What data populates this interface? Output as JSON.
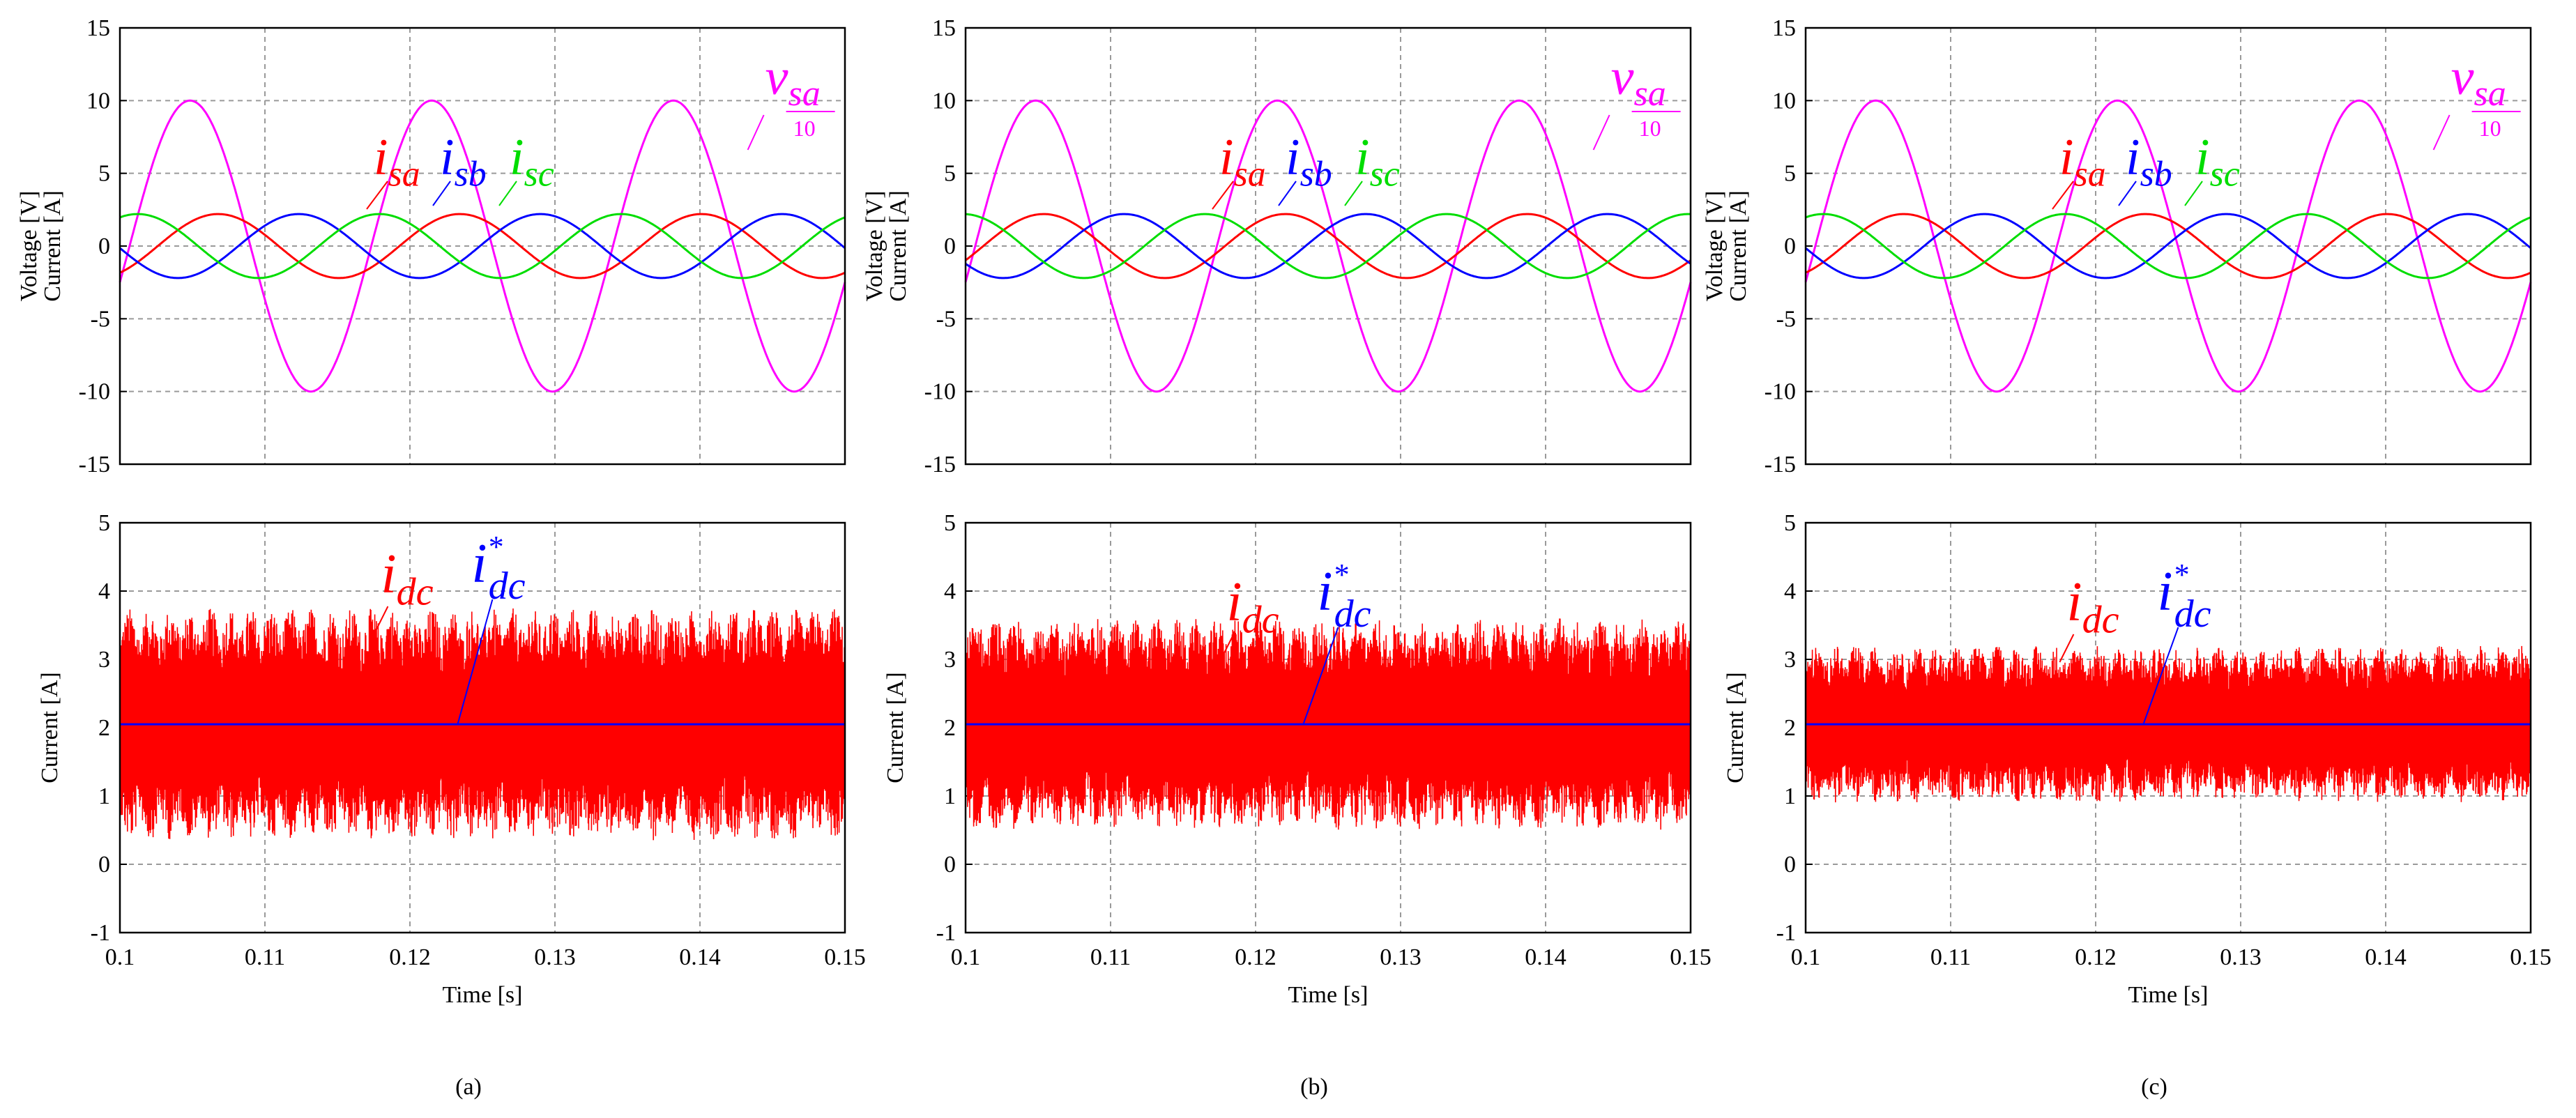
{
  "chart_data": [
    {
      "panel": "a",
      "caption": "(a)",
      "top": {
        "type": "line",
        "ylabel_lines": [
          "Voltage [V]",
          "Current [A]"
        ],
        "xlim": [
          0.1,
          0.15
        ],
        "ylim": [
          -15,
          15
        ],
        "yticks": [
          "15",
          "10",
          "5",
          "0",
          "-5",
          "-10",
          "-15"
        ],
        "grid": true,
        "series": [
          {
            "label": "v_sa/10",
            "color": "#ff00ff",
            "amplitude": 10,
            "frequency_hz": 60,
            "phase_deg": 90
          },
          {
            "label": "i_sa",
            "color": "#ff0000",
            "amplitude": 2.2,
            "frequency_hz": 60,
            "phase_deg": 48
          },
          {
            "label": "i_sb",
            "color": "#0000ff",
            "amplitude": 2.2,
            "frequency_hz": 60,
            "phase_deg": -72
          },
          {
            "label": "i_sc",
            "color": "#00dd00",
            "amplitude": 2.2,
            "frequency_hz": 60,
            "phase_deg": 168
          }
        ]
      },
      "bottom": {
        "type": "line",
        "ylabel": "Current [A]",
        "xlabel": "Time [s]",
        "xlim": [
          0.1,
          0.15
        ],
        "ylim": [
          -1,
          5
        ],
        "xticks": [
          "0.1",
          "0.11",
          "0.12",
          "0.13",
          "0.14",
          "0.15"
        ],
        "yticks": [
          "5",
          "4",
          "3",
          "2",
          "1",
          "0",
          "-1"
        ],
        "grid": true,
        "series": [
          {
            "label": "i_dc",
            "color": "#ff0000",
            "mean": 2.05,
            "ripple_min": 0.3,
            "ripple_max": 3.7
          },
          {
            "label": "i*_dc",
            "color": "#0000ff",
            "value": 2.05
          }
        ]
      }
    },
    {
      "panel": "b",
      "caption": "(b)",
      "top": {
        "type": "line",
        "ylabel_lines": [
          "Voltage [V]",
          "Current [A]"
        ],
        "xlim": [
          0.1,
          0.15
        ],
        "ylim": [
          -15,
          15
        ],
        "yticks": [
          "15",
          "10",
          "5",
          "0",
          "-5",
          "-10",
          "-15"
        ],
        "grid": true,
        "series": [
          {
            "label": "v_sa/10",
            "color": "#ff00ff",
            "amplitude": 10,
            "frequency_hz": 60,
            "phase_deg": 90
          },
          {
            "label": "i_sa",
            "color": "#ff0000",
            "amplitude": 2.2,
            "frequency_hz": 60,
            "phase_deg": 78
          },
          {
            "label": "i_sb",
            "color": "#0000ff",
            "amplitude": 2.2,
            "frequency_hz": 60,
            "phase_deg": -42
          },
          {
            "label": "i_sc",
            "color": "#00dd00",
            "amplitude": 2.2,
            "frequency_hz": 60,
            "phase_deg": 198
          }
        ]
      },
      "bottom": {
        "type": "line",
        "ylabel": "Current [A]",
        "xlabel": "Time [s]",
        "xlim": [
          0.1,
          0.15
        ],
        "ylim": [
          -1,
          5
        ],
        "xticks": [
          "0.1",
          "0.11",
          "0.12",
          "0.13",
          "0.14",
          "0.15"
        ],
        "yticks": [
          "5",
          "4",
          "3",
          "2",
          "1",
          "0",
          "-1"
        ],
        "grid": true,
        "series": [
          {
            "label": "i_dc",
            "color": "#ff0000",
            "mean": 2.05,
            "ripple_min": 0.3,
            "ripple_max": 3.4
          },
          {
            "label": "i*_dc",
            "color": "#0000ff",
            "value": 2.05
          }
        ]
      }
    },
    {
      "panel": "c",
      "caption": "(c)",
      "top": {
        "type": "line",
        "ylabel_lines": [
          "Voltage [V]",
          "Current [A]"
        ],
        "xlim": [
          0.1,
          0.15
        ],
        "ylim": [
          -15,
          15
        ],
        "yticks": [
          "15",
          "10",
          "5",
          "0",
          "-5",
          "-10",
          "-15"
        ],
        "grid": true,
        "series": [
          {
            "label": "v_sa/10",
            "color": "#ff00ff",
            "amplitude": 10,
            "frequency_hz": 60,
            "phase_deg": 90
          },
          {
            "label": "i_sa",
            "color": "#ff0000",
            "amplitude": 2.2,
            "frequency_hz": 60,
            "phase_deg": 48
          },
          {
            "label": "i_sb",
            "color": "#0000ff",
            "amplitude": 2.2,
            "frequency_hz": 60,
            "phase_deg": -72
          },
          {
            "label": "i_sc",
            "color": "#00dd00",
            "amplitude": 2.2,
            "frequency_hz": 60,
            "phase_deg": 168
          }
        ]
      },
      "bottom": {
        "type": "line",
        "ylabel": "Current [A]",
        "xlabel": "Time [s]",
        "xlim": [
          0.1,
          0.15
        ],
        "ylim": [
          -1,
          5
        ],
        "xticks": [
          "0.1",
          "0.11",
          "0.12",
          "0.13",
          "0.14",
          "0.15"
        ],
        "yticks": [
          "5",
          "4",
          "3",
          "2",
          "1",
          "0",
          "-1"
        ],
        "grid": true,
        "series": [
          {
            "label": "i_dc",
            "color": "#ff0000",
            "mean": 2.05,
            "ripple_min": 0.8,
            "ripple_max": 3.1
          },
          {
            "label": "i*_dc",
            "color": "#0000ff",
            "value": 2.05
          }
        ]
      }
    }
  ]
}
